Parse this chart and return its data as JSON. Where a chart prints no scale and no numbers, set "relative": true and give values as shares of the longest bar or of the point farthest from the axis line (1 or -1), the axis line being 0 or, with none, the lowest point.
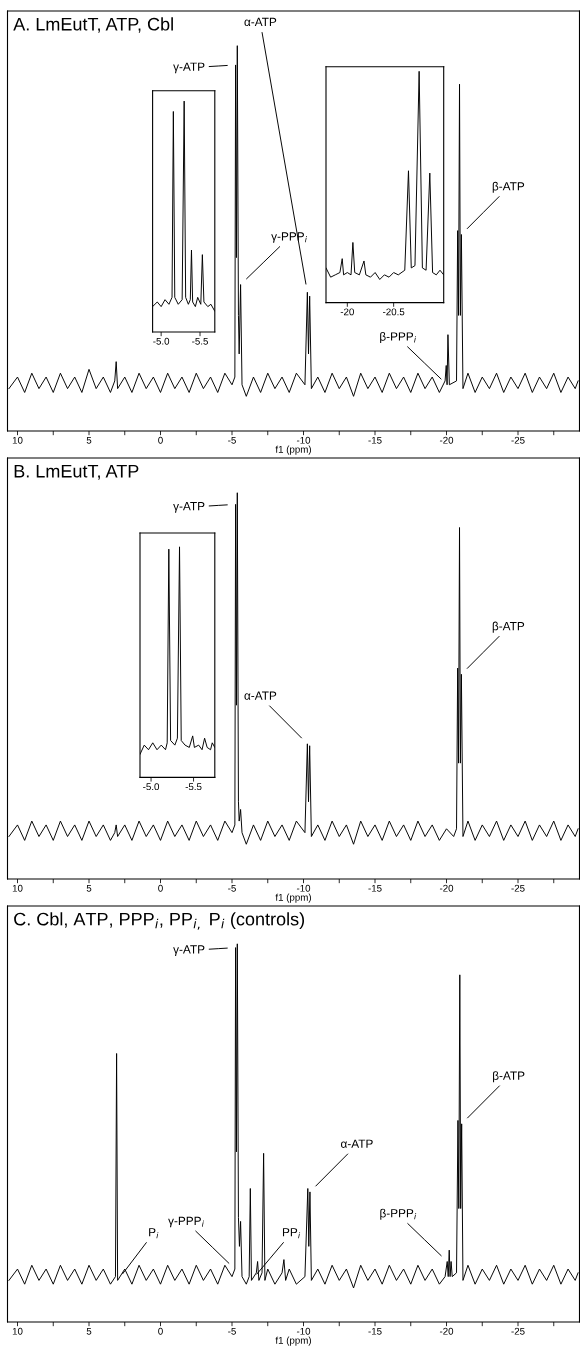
{
  "chart_data": [
    {
      "type": "line",
      "title": "A. LmEutT, ATP, Cbl",
      "xlabel": "f1 (ppm)",
      "relative": true,
      "color": "#000000",
      "tick_labels": "x",
      "xlim": [
        10.7,
        -29.3
      ],
      "xticks": [
        10,
        {
          "value": 7.5,
          "label": null
        },
        5,
        {
          "value": 2.5,
          "label": null
        },
        0,
        {
          "value": -2.5,
          "label": null
        },
        -5,
        {
          "value": -7.5,
          "label": null
        },
        -10,
        {
          "value": -12.5,
          "label": null
        },
        -15,
        {
          "value": -17.5,
          "label": null
        },
        -20,
        {
          "value": -22.5,
          "label": null
        },
        -25,
        {
          "value": -27.5,
          "label": null
        }
      ],
      "x": [
        10.6,
        10.0,
        9.5,
        9.0,
        8.5,
        8.0,
        7.5,
        7.0,
        6.5,
        6.0,
        5.5,
        5.0,
        4.5,
        4.0,
        3.5,
        3.2,
        3.1,
        3.0,
        2.5,
        2.0,
        1.5,
        1.0,
        0.5,
        0.0,
        -0.5,
        -1.0,
        -1.5,
        -2.0,
        -2.5,
        -3.0,
        -3.5,
        -4.0,
        -4.5,
        -5.0,
        -5.2,
        -5.25,
        -5.31,
        -5.37,
        -5.45,
        -5.5,
        -5.6,
        -5.7,
        -6.0,
        -6.5,
        -7.0,
        -7.5,
        -8.0,
        -8.5,
        -9.0,
        -9.5,
        -10.1,
        -10.27,
        -10.35,
        -10.43,
        -10.55,
        -11.0,
        -11.5,
        -12.0,
        -12.5,
        -13.0,
        -13.5,
        -14.0,
        -14.5,
        -15.0,
        -15.5,
        -16.0,
        -16.5,
        -17.0,
        -17.5,
        -18.0,
        -18.5,
        -19.0,
        -19.5,
        -19.9,
        -19.98,
        -20.04,
        -20.1,
        -20.2,
        -20.7,
        -20.78,
        -20.84,
        -20.91,
        -20.97,
        -21.04,
        -21.15,
        -21.5,
        -22.0,
        -22.5,
        -23.0,
        -23.5,
        -24.0,
        -24.5,
        -25.0,
        -25.5,
        -26.0,
        -26.5,
        -27.0,
        -27.5,
        -28.0,
        -28.5,
        -29.0,
        -29.2
      ],
      "values": [
        0.11,
        0.14,
        0.1,
        0.15,
        0.11,
        0.14,
        0.1,
        0.15,
        0.11,
        0.14,
        0.1,
        0.16,
        0.11,
        0.14,
        0.1,
        0.13,
        0.18,
        0.11,
        0.14,
        0.1,
        0.15,
        0.11,
        0.14,
        0.1,
        0.15,
        0.11,
        0.14,
        0.1,
        0.15,
        0.11,
        0.14,
        0.1,
        0.15,
        0.12,
        0.14,
        0.95,
        0.45,
        1.0,
        0.3,
        0.2,
        0.38,
        0.12,
        0.09,
        0.14,
        0.1,
        0.15,
        0.11,
        0.14,
        0.1,
        0.15,
        0.12,
        0.36,
        0.2,
        0.35,
        0.11,
        0.14,
        0.1,
        0.15,
        0.11,
        0.14,
        0.09,
        0.15,
        0.11,
        0.14,
        0.1,
        0.15,
        0.11,
        0.14,
        0.1,
        0.15,
        0.11,
        0.14,
        0.1,
        0.13,
        0.17,
        0.12,
        0.25,
        0.12,
        0.13,
        0.52,
        0.3,
        0.9,
        0.3,
        0.51,
        0.11,
        0.15,
        0.1,
        0.14,
        0.11,
        0.15,
        0.1,
        0.14,
        0.11,
        0.15,
        0.1,
        0.14,
        0.11,
        0.15,
        0.1,
        0.14,
        0.11,
        0.13
      ],
      "annotations": [
        {
          "text": "γ-ATP",
          "x": -5.25,
          "y": 0.95
        },
        {
          "text": "γ-PPP$_{i}$",
          "x": -5.6,
          "y": 0.38
        },
        {
          "text": "α-ATP",
          "x": -10.27,
          "y": 0.36
        },
        {
          "text": "β-PPP$_{i}$",
          "x": -20.04,
          "y": 0.12
        },
        {
          "text": "β-ATP",
          "x": -21.04,
          "y": 0.51
        }
      ]
    },
    {
      "type": "line",
      "relative": true,
      "color": "#000000",
      "tick_labels": "x",
      "xlim": [
        -4.89,
        -5.69
      ],
      "xticks": [
        {
          "value": -5.0,
          "label": "-5.0"
        },
        {
          "value": -5.5,
          "label": "-5.5"
        }
      ],
      "x": [
        -4.89,
        -4.95,
        -5.0,
        -5.05,
        -5.1,
        -5.14,
        -5.157,
        -5.175,
        -5.22,
        -5.27,
        -5.296,
        -5.315,
        -5.35,
        -5.375,
        -5.39,
        -5.405,
        -5.44,
        -5.47,
        -5.51,
        -5.53,
        -5.55,
        -5.6,
        -5.64,
        -5.69
      ],
      "values": [
        0.11,
        0.13,
        0.11,
        0.14,
        0.12,
        0.15,
        0.955,
        0.15,
        0.12,
        0.14,
        1.0,
        0.15,
        0.12,
        0.14,
        0.355,
        0.13,
        0.11,
        0.15,
        0.12,
        0.335,
        0.13,
        0.11,
        0.12,
        0.09
      ]
    },
    {
      "type": "line",
      "relative": true,
      "color": "#000000",
      "tick_labels": "x",
      "xlim": [
        -19.77,
        -21.04
      ],
      "xticks": [
        -20,
        -20.5
      ],
      "x": [
        -19.77,
        -19.82,
        -19.87,
        -19.92,
        -19.945,
        -19.96,
        -20.0,
        -20.04,
        -20.06,
        -20.08,
        -20.13,
        -20.18,
        -20.2,
        -20.25,
        -20.3,
        -20.35,
        -20.4,
        -20.45,
        -20.5,
        -20.55,
        -20.62,
        -20.66,
        -20.69,
        -20.73,
        -20.775,
        -20.81,
        -20.85,
        -20.89,
        -20.92,
        -20.96,
        -21.0,
        -21.04
      ],
      "values": [
        0.15,
        0.11,
        0.12,
        0.13,
        0.19,
        0.12,
        0.13,
        0.12,
        0.26,
        0.13,
        0.12,
        0.18,
        0.12,
        0.11,
        0.13,
        0.1,
        0.12,
        0.11,
        0.13,
        0.12,
        0.14,
        0.57,
        0.15,
        0.16,
        1.0,
        0.15,
        0.14,
        0.56,
        0.13,
        0.12,
        0.14,
        0.12
      ]
    },
    {
      "type": "line",
      "title": "B. LmEutT, ATP",
      "xlabel": "f1 (ppm)",
      "relative": true,
      "color": "#000000",
      "tick_labels": "x",
      "xlim": [
        10.7,
        -29.3
      ],
      "xticks": [
        10,
        {
          "value": 7.5,
          "label": null
        },
        5,
        {
          "value": 2.5,
          "label": null
        },
        0,
        {
          "value": -2.5,
          "label": null
        },
        -5,
        {
          "value": -7.5,
          "label": null
        },
        -10,
        {
          "value": -12.5,
          "label": null
        },
        -15,
        {
          "value": -17.5,
          "label": null
        },
        -20,
        {
          "value": -22.5,
          "label": null
        },
        -25,
        {
          "value": -27.5,
          "label": null
        }
      ],
      "x": [
        10.6,
        10.0,
        9.5,
        9.0,
        8.5,
        8.0,
        7.5,
        7.0,
        6.5,
        6.0,
        5.5,
        5.0,
        4.5,
        4.0,
        3.5,
        3.2,
        3.1,
        3.0,
        2.5,
        2.0,
        1.5,
        1.0,
        0.5,
        0.0,
        -0.5,
        -1.0,
        -1.5,
        -2.0,
        -2.5,
        -3.0,
        -3.5,
        -4.0,
        -4.5,
        -5.0,
        -5.2,
        -5.25,
        -5.31,
        -5.37,
        -5.45,
        -5.5,
        -5.6,
        -5.7,
        -6.0,
        -6.5,
        -7.0,
        -7.5,
        -8.0,
        -8.5,
        -9.0,
        -9.5,
        -10.1,
        -10.27,
        -10.35,
        -10.43,
        -10.55,
        -11.0,
        -11.5,
        -12.0,
        -12.5,
        -13.0,
        -13.5,
        -14.0,
        -14.5,
        -15.0,
        -15.5,
        -16.0,
        -16.5,
        -17.0,
        -17.5,
        -18.0,
        -18.5,
        -19.0,
        -19.5,
        -20.0,
        -20.5,
        -20.7,
        -20.78,
        -20.84,
        -20.91,
        -20.97,
        -21.04,
        -21.15,
        -21.5,
        -22.0,
        -22.5,
        -23.0,
        -23.5,
        -24.0,
        -24.5,
        -25.0,
        -25.5,
        -26.0,
        -26.5,
        -27.0,
        -27.5,
        -28.0,
        -28.5,
        -29.0,
        -29.2
      ],
      "values": [
        0.11,
        0.14,
        0.1,
        0.15,
        0.11,
        0.14,
        0.1,
        0.15,
        0.11,
        0.14,
        0.1,
        0.15,
        0.11,
        0.14,
        0.1,
        0.12,
        0.14,
        0.11,
        0.14,
        0.1,
        0.15,
        0.11,
        0.14,
        0.1,
        0.15,
        0.11,
        0.14,
        0.1,
        0.15,
        0.11,
        0.14,
        0.1,
        0.15,
        0.12,
        0.14,
        0.97,
        0.45,
        1.0,
        0.2,
        0.15,
        0.18,
        0.12,
        0.09,
        0.14,
        0.1,
        0.15,
        0.11,
        0.14,
        0.1,
        0.15,
        0.12,
        0.35,
        0.2,
        0.345,
        0.11,
        0.14,
        0.1,
        0.15,
        0.11,
        0.14,
        0.09,
        0.15,
        0.11,
        0.14,
        0.1,
        0.15,
        0.11,
        0.14,
        0.1,
        0.15,
        0.11,
        0.14,
        0.1,
        0.13,
        0.11,
        0.13,
        0.546,
        0.3,
        0.91,
        0.3,
        0.53,
        0.11,
        0.15,
        0.1,
        0.14,
        0.11,
        0.15,
        0.1,
        0.14,
        0.11,
        0.15,
        0.1,
        0.14,
        0.11,
        0.15,
        0.1,
        0.14,
        0.11,
        0.13
      ],
      "annotations": [
        {
          "text": "γ-ATP",
          "x": -5.25,
          "y": 0.97
        },
        {
          "text": "α-ATP",
          "x": -10.27,
          "y": 0.35
        },
        {
          "text": "β-ATP",
          "x": -21.04,
          "y": 0.53
        }
      ]
    },
    {
      "type": "line",
      "relative": true,
      "color": "#000000",
      "tick_labels": "x",
      "xlim": [
        -4.87,
        -5.75
      ],
      "xticks": [
        {
          "value": -5.0,
          "label": "-5.0"
        },
        {
          "value": -5.5,
          "label": "-5.5"
        }
      ],
      "x": [
        -4.87,
        -4.92,
        -4.97,
        -5.02,
        -5.07,
        -5.12,
        -5.17,
        -5.19,
        -5.209,
        -5.23,
        -5.28,
        -5.31,
        -5.335,
        -5.355,
        -5.4,
        -5.45,
        -5.49,
        -5.51,
        -5.56,
        -5.6,
        -5.63,
        -5.66,
        -5.7,
        -5.72,
        -5.75
      ],
      "values": [
        0.1,
        0.14,
        0.12,
        0.15,
        0.12,
        0.14,
        0.12,
        0.15,
        0.99,
        0.16,
        0.14,
        0.17,
        1.0,
        0.16,
        0.14,
        0.13,
        0.18,
        0.13,
        0.14,
        0.12,
        0.17,
        0.13,
        0.12,
        0.15,
        0.13
      ]
    },
    {
      "type": "line",
      "title": "C. Cbl, ATP, PPP$_{i}$, PP$_{i,}$ P$_{i}$ (controls)",
      "xlabel": "f1 (ppm)",
      "relative": true,
      "color": "#000000",
      "tick_labels": "x",
      "xlim": [
        10.7,
        -29.3
      ],
      "xticks": [
        10,
        {
          "value": 7.5,
          "label": null
        },
        5,
        {
          "value": 2.5,
          "label": null
        },
        0,
        {
          "value": -2.5,
          "label": null
        },
        -5,
        {
          "value": -7.5,
          "label": null
        },
        -10,
        {
          "value": -12.5,
          "label": null
        },
        -15,
        {
          "value": -17.5,
          "label": null
        },
        -20,
        {
          "value": -22.5,
          "label": null
        },
        -25,
        {
          "value": -27.5,
          "label": null
        }
      ],
      "x": [
        10.6,
        10.0,
        9.5,
        9.0,
        8.5,
        8.0,
        7.5,
        7.0,
        6.5,
        6.0,
        5.5,
        5.0,
        4.5,
        4.0,
        3.5,
        3.15,
        3.07,
        3.0,
        2.5,
        2.0,
        1.5,
        1.0,
        0.5,
        0.0,
        -0.5,
        -1.0,
        -1.5,
        -2.0,
        -2.5,
        -3.0,
        -3.5,
        -4.0,
        -4.5,
        -5.0,
        -5.2,
        -5.25,
        -5.31,
        -5.37,
        -5.45,
        -5.52,
        -5.6,
        -5.7,
        -6.0,
        -6.2,
        -6.28,
        -6.36,
        -6.7,
        -6.79,
        -6.88,
        -7.1,
        -7.21,
        -7.3,
        -7.5,
        -8.0,
        -8.5,
        -8.63,
        -8.75,
        -9.0,
        -9.5,
        -10.1,
        -10.3,
        -10.37,
        -10.45,
        -10.55,
        -11.0,
        -11.5,
        -12.0,
        -12.5,
        -13.0,
        -13.5,
        -14.0,
        -14.5,
        -15.0,
        -15.5,
        -16.0,
        -16.5,
        -17.0,
        -17.5,
        -18.0,
        -18.5,
        -19.0,
        -19.5,
        -19.9,
        -20.05,
        -20.12,
        -20.19,
        -20.25,
        -20.32,
        -20.4,
        -20.7,
        -20.8,
        -20.86,
        -20.93,
        -20.99,
        -21.06,
        -21.15,
        -21.5,
        -22.0,
        -22.5,
        -23.0,
        -23.5,
        -24.0,
        -24.5,
        -25.0,
        -25.5,
        -26.0,
        -26.5,
        -27.0,
        -27.5,
        -28.0,
        -28.5,
        -29.0,
        -29.2
      ],
      "values": [
        0.11,
        0.14,
        0.1,
        0.15,
        0.11,
        0.14,
        0.1,
        0.15,
        0.11,
        0.14,
        0.1,
        0.15,
        0.11,
        0.14,
        0.1,
        0.12,
        0.71,
        0.11,
        0.14,
        0.1,
        0.15,
        0.11,
        0.14,
        0.1,
        0.15,
        0.11,
        0.14,
        0.1,
        0.15,
        0.11,
        0.14,
        0.1,
        0.15,
        0.12,
        0.14,
        0.99,
        0.45,
        1.0,
        0.276,
        0.2,
        0.266,
        0.12,
        0.1,
        0.12,
        0.353,
        0.11,
        0.13,
        0.16,
        0.11,
        0.13,
        0.446,
        0.11,
        0.14,
        0.1,
        0.13,
        0.165,
        0.11,
        0.14,
        0.1,
        0.12,
        0.353,
        0.2,
        0.344,
        0.11,
        0.14,
        0.1,
        0.15,
        0.11,
        0.14,
        0.09,
        0.15,
        0.11,
        0.14,
        0.1,
        0.15,
        0.11,
        0.14,
        0.1,
        0.15,
        0.11,
        0.14,
        0.1,
        0.12,
        0.16,
        0.12,
        0.19,
        0.12,
        0.16,
        0.12,
        0.13,
        0.533,
        0.3,
        0.918,
        0.3,
        0.524,
        0.11,
        0.15,
        0.1,
        0.14,
        0.11,
        0.15,
        0.1,
        0.14,
        0.11,
        0.15,
        0.1,
        0.14,
        0.11,
        0.15,
        0.1,
        0.14,
        0.11,
        0.13
      ],
      "annotations": [
        {
          "text": "P$_{i}$",
          "x": 3.0,
          "y": 0.11
        },
        {
          "text": "γ-ATP",
          "x": -5.25,
          "y": 0.99
        },
        {
          "text": "γ-PPP$_{i}$",
          "x": -5.2,
          "y": 0.14
        },
        {
          "text": "PP$_{i}$",
          "x": -6.36,
          "y": 0.11
        },
        {
          "text": "α-ATP",
          "x": -10.45,
          "y": 0.344
        },
        {
          "text": "β-PPP$_{i}$",
          "x": -20.05,
          "y": 0.16
        },
        {
          "text": "β-ATP",
          "x": -21.06,
          "y": 0.524
        }
      ]
    }
  ]
}
